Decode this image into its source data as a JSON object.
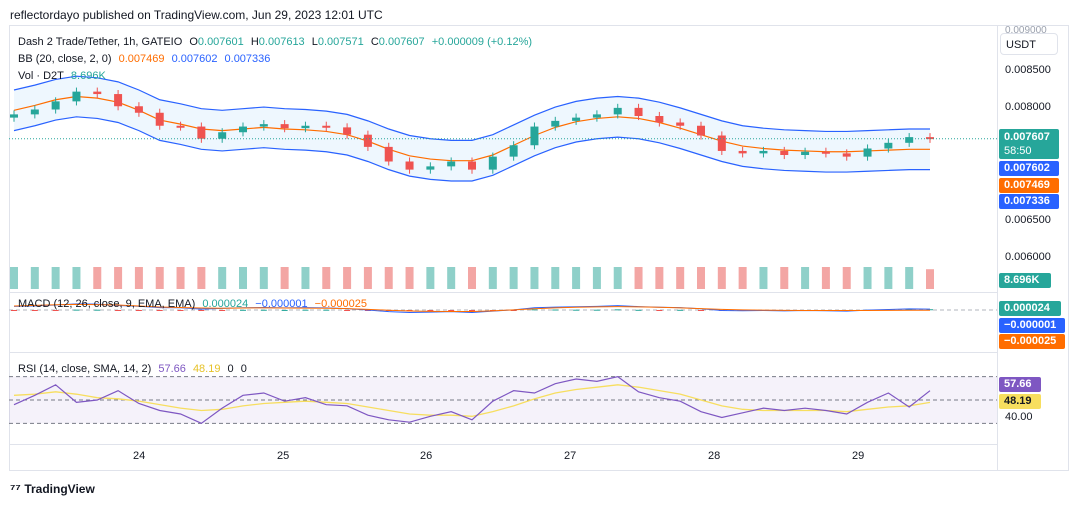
{
  "header": {
    "text": "reflectordayo published on TradingView.com, Jun 29, 2023 12:01 UTC"
  },
  "currency": "USDT",
  "legend": {
    "symbol": "Dash 2 Trade/Tether, 1h, GATEIO",
    "o_label": "O",
    "o": "0.007601",
    "h_label": "H",
    "h": "0.007613",
    "l_label": "L",
    "l": "0.007571",
    "c_label": "C",
    "c": "0.007607",
    "change": "+0.000009 (+0.12%)",
    "bb_label": "BB (20, close, 2, 0)",
    "bb_basis": "0.007469",
    "bb_upper": "0.007602",
    "bb_lower": "0.007336",
    "vol_label": "Vol · D2T",
    "vol": "8.696K",
    "macd_label": "MACD (12, 26, close, 9, EMA, EMA)",
    "macd_hist": "0.000024",
    "macd": "−0.000001",
    "macd_signal": "−0.000025",
    "rsi_label": "RSI (14, close, SMA, 14, 2)",
    "rsi": "57.66",
    "rsi_ma": "48.19",
    "rsi_z1": "0",
    "rsi_z2": "0"
  },
  "price_axis": [
    "0.008500",
    "0.008000",
    "0.006500",
    "0.006000"
  ],
  "price_axis_top": "0.009000",
  "tags": {
    "price": "0.007607",
    "countdown": "58:50",
    "bb_upper": "0.007602",
    "bb_basis": "0.007469",
    "bb_lower": "0.007336",
    "vol": "8.696K",
    "macd_hist": "0.000024",
    "macd": "−0.000001",
    "macd_signal": "−0.000025",
    "rsi": "57.66",
    "rsi_ma": "48.19",
    "rsi_axis": "40.00"
  },
  "colors": {
    "up": "#26a69a",
    "down": "#ef5350",
    "bb_band": "#2962ff",
    "bb_basis": "#ff6d00",
    "rsi_line": "#7e57c2",
    "rsi_ma": "#f7de5f",
    "vol_up": "#8fd0c9",
    "vol_down": "#f3a6a4"
  },
  "chart_data": {
    "type": "candlestick",
    "time_labels": [
      "24",
      "25",
      "26",
      "27",
      "28",
      "29"
    ],
    "y_range": [
      0.0058,
      0.009
    ],
    "series": [
      {
        "name": "Price close",
        "values": [
          0.0079,
          0.00796,
          0.00806,
          0.00818,
          0.00815,
          0.008,
          0.00792,
          0.00776,
          0.00775,
          0.0076,
          0.00768,
          0.00775,
          0.00778,
          0.00773,
          0.00776,
          0.00774,
          0.00765,
          0.0075,
          0.00732,
          0.00722,
          0.00726,
          0.00732,
          0.00722,
          0.00738,
          0.00752,
          0.00775,
          0.00782,
          0.00786,
          0.0079,
          0.00798,
          0.00788,
          0.0078,
          0.00776,
          0.00764,
          0.00745,
          0.00742,
          0.00745,
          0.0074,
          0.00744,
          0.00742,
          0.00738,
          0.00748,
          0.00755,
          0.00762,
          0.0076
        ]
      },
      {
        "name": "BB (20, close, 2, 0)",
        "values": [
          0.00795,
          0.00801,
          0.00808,
          0.00812,
          0.0081,
          0.00805,
          0.00795,
          0.00783,
          0.00778,
          0.00772,
          0.0077,
          0.00772,
          0.00774,
          0.00772,
          0.00771,
          0.00769,
          0.00765,
          0.00757,
          0.00747,
          0.00739,
          0.00735,
          0.00733,
          0.00733,
          0.0074,
          0.00752,
          0.00764,
          0.00774,
          0.00781,
          0.00785,
          0.00787,
          0.00785,
          0.0078,
          0.00773,
          0.00765,
          0.00757,
          0.00751,
          0.00748,
          0.00746,
          0.00745,
          0.00744,
          0.00744,
          0.00745,
          0.00746,
          0.00747,
          0.00747
        ]
      },
      {
        "name": "Volume",
        "values": [
          10,
          10,
          10,
          10,
          10,
          10,
          10,
          10,
          10,
          10,
          10,
          10,
          10,
          10,
          10,
          10,
          10,
          10,
          10,
          10,
          10,
          10,
          10,
          10,
          10,
          10,
          10,
          10,
          10,
          10,
          10,
          10,
          10,
          10,
          10,
          10,
          10,
          10,
          10,
          10,
          10,
          10,
          10,
          10,
          9
        ]
      }
    ],
    "rsi_levels": [
      70,
      50,
      30
    ],
    "rsi_values": [
      46,
      54,
      63,
      48,
      50,
      58,
      47,
      41,
      38,
      30,
      43,
      54,
      56,
      49,
      52,
      46,
      45,
      37,
      33,
      31,
      36,
      40,
      33,
      49,
      58,
      56,
      64,
      68,
      66,
      70,
      57,
      52,
      49,
      40,
      35,
      39,
      43,
      41,
      43,
      41,
      38,
      48,
      56,
      44,
      58
    ],
    "rsi_ma_values": [
      54,
      55,
      57,
      55,
      52,
      51,
      49,
      46,
      43,
      41,
      42,
      45,
      47,
      48,
      49,
      48,
      47,
      44,
      41,
      38,
      37,
      37,
      36,
      40,
      45,
      51,
      56,
      59,
      61,
      63,
      61,
      58,
      55,
      50,
      45,
      42,
      41,
      41,
      41,
      41,
      40,
      42,
      44,
      45,
      48
    ]
  }
}
